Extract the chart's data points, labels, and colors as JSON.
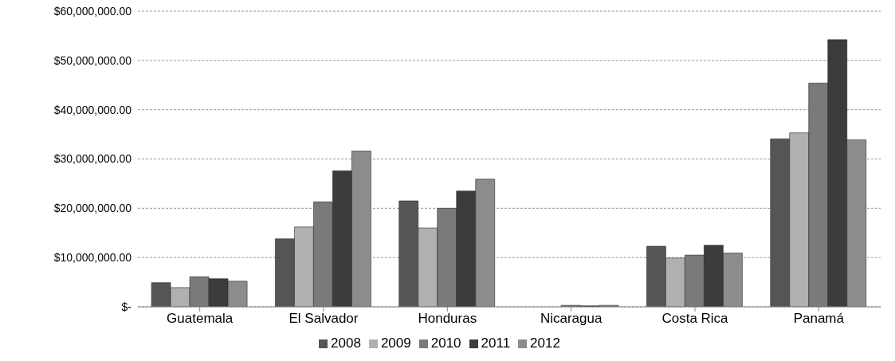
{
  "chart_data": {
    "type": "bar",
    "categories": [
      "Guatemala",
      "El Salvador",
      "Honduras",
      "Nicaragua",
      "Costa Rica",
      "Panamá"
    ],
    "series": [
      {
        "name": "2008",
        "color": "#555555",
        "values": [
          4900000,
          13800000,
          21500000,
          0,
          12300000,
          34100000
        ]
      },
      {
        "name": "2009",
        "color": "#b0b0b0",
        "values": [
          3900000,
          16200000,
          16000000,
          0,
          9900000,
          35300000
        ]
      },
      {
        "name": "2010",
        "color": "#7a7a7a",
        "values": [
          6100000,
          21300000,
          20000000,
          300000,
          10500000,
          45400000
        ]
      },
      {
        "name": "2011",
        "color": "#3c3c3c",
        "values": [
          5700000,
          27600000,
          23500000,
          200000,
          12500000,
          54200000
        ]
      },
      {
        "name": "2012",
        "color": "#8c8c8c",
        "values": [
          5200000,
          31600000,
          25900000,
          300000,
          10900000,
          33900000
        ]
      }
    ],
    "ylim": [
      0,
      60000000
    ],
    "yticks": [
      {
        "value": 0,
        "label": "$-"
      },
      {
        "value": 10000000,
        "label": "$10,000,000.00"
      },
      {
        "value": 20000000,
        "label": "$20,000,000.00"
      },
      {
        "value": 30000000,
        "label": "$30,000,000.00"
      },
      {
        "value": 40000000,
        "label": "$40,000,000.00"
      },
      {
        "value": 50000000,
        "label": "$50,000,000.00"
      },
      {
        "value": 60000000,
        "label": "$60,000,000.00"
      }
    ],
    "grid": "y",
    "legend": "bottom"
  }
}
